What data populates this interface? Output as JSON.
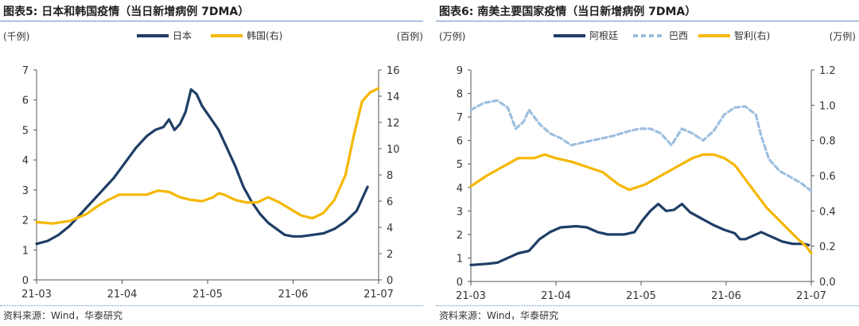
{
  "charts": [
    {
      "title": "图表5: 日本和韩国疫情（当日新增病例 7DMA）",
      "source": "资料来源：Wind，华泰研究",
      "chart_data": {
        "type": "line",
        "x_ticks": [
          "21-03",
          "21-04",
          "21-05",
          "21-06",
          "21-07"
        ],
        "y_left_label": "(千例)",
        "y_right_label": "(百例)",
        "y_left_range": [
          0,
          7
        ],
        "y_left_ticks": [
          0,
          1,
          2,
          3,
          4,
          5,
          6,
          7
        ],
        "y_right_range": [
          0,
          16
        ],
        "y_right_ticks": [
          0,
          2,
          4,
          6,
          8,
          10,
          12,
          14,
          16
        ],
        "legend_position": "top",
        "grid": false,
        "series": [
          {
            "name": "日本",
            "axis": "left",
            "color": "#1f3e66",
            "dash": false,
            "points": [
              [
                0,
                1.2
              ],
              [
                4,
                1.3
              ],
              [
                8,
                1.5
              ],
              [
                12,
                1.8
              ],
              [
                16,
                2.2
              ],
              [
                20,
                2.6
              ],
              [
                24,
                3.0
              ],
              [
                28,
                3.4
              ],
              [
                32,
                3.9
              ],
              [
                36,
                4.4
              ],
              [
                40,
                4.8
              ],
              [
                43,
                5.0
              ],
              [
                46,
                5.1
              ],
              [
                48,
                5.35
              ],
              [
                50,
                5.0
              ],
              [
                52,
                5.2
              ],
              [
                54,
                5.6
              ],
              [
                56,
                6.35
              ],
              [
                58,
                6.2
              ],
              [
                60,
                5.8
              ],
              [
                63,
                5.4
              ],
              [
                66,
                5.0
              ],
              [
                69,
                4.4
              ],
              [
                72,
                3.8
              ],
              [
                75,
                3.1
              ],
              [
                78,
                2.6
              ],
              [
                81,
                2.2
              ],
              [
                84,
                1.9
              ],
              [
                87,
                1.7
              ],
              [
                90,
                1.5
              ],
              [
                93,
                1.45
              ],
              [
                96,
                1.45
              ],
              [
                100,
                1.5
              ],
              [
                104,
                1.55
              ],
              [
                108,
                1.7
              ],
              [
                112,
                1.95
              ],
              [
                116,
                2.3
              ],
              [
                120,
                3.1
              ]
            ]
          },
          {
            "name": "韩国(右)",
            "axis": "right",
            "color": "#f5b700",
            "dash": false,
            "points": [
              [
                0,
                4.4
              ],
              [
                6,
                4.3
              ],
              [
                12,
                4.5
              ],
              [
                18,
                5.0
              ],
              [
                22,
                5.6
              ],
              [
                26,
                6.1
              ],
              [
                30,
                6.5
              ],
              [
                35,
                6.5
              ],
              [
                40,
                6.5
              ],
              [
                44,
                6.8
              ],
              [
                48,
                6.7
              ],
              [
                52,
                6.3
              ],
              [
                56,
                6.1
              ],
              [
                60,
                6.0
              ],
              [
                64,
                6.3
              ],
              [
                66,
                6.6
              ],
              [
                68,
                6.5
              ],
              [
                72,
                6.1
              ],
              [
                76,
                5.9
              ],
              [
                80,
                5.9
              ],
              [
                84,
                6.3
              ],
              [
                88,
                5.9
              ],
              [
                92,
                5.4
              ],
              [
                96,
                4.9
              ],
              [
                100,
                4.7
              ],
              [
                104,
                5.1
              ],
              [
                108,
                6.1
              ],
              [
                112,
                8.0
              ],
              [
                115,
                11.0
              ],
              [
                118,
                13.6
              ],
              [
                121,
                14.3
              ],
              [
                124,
                14.6
              ]
            ]
          }
        ]
      }
    },
    {
      "title": "图表6: 南美主要国家疫情（当日新增病例 7DMA）",
      "source": "资料来源：Wind，华泰研究",
      "chart_data": {
        "type": "line",
        "x_ticks": [
          "21-03",
          "21-04",
          "21-05",
          "21-06",
          "21-07"
        ],
        "y_left_label": "(万例)",
        "y_right_label": "(万例)",
        "y_left_range": [
          0,
          9
        ],
        "y_left_ticks": [
          0,
          1,
          2,
          3,
          4,
          5,
          6,
          7,
          8,
          9
        ],
        "y_right_range": [
          0,
          1.2
        ],
        "y_right_ticks": [
          0.0,
          0.2,
          0.4,
          0.6,
          0.8,
          1.0,
          1.2
        ],
        "legend_position": "top",
        "grid": false,
        "series": [
          {
            "name": "阿根廷",
            "axis": "left",
            "color": "#1f3e66",
            "dash": false,
            "points": [
              [
                0,
                0.7
              ],
              [
                6,
                0.75
              ],
              [
                10,
                0.8
              ],
              [
                14,
                1.0
              ],
              [
                18,
                1.2
              ],
              [
                22,
                1.3
              ],
              [
                26,
                1.8
              ],
              [
                30,
                2.1
              ],
              [
                34,
                2.3
              ],
              [
                40,
                2.35
              ],
              [
                44,
                2.3
              ],
              [
                48,
                2.1
              ],
              [
                52,
                2.0
              ],
              [
                58,
                2.0
              ],
              [
                62,
                2.1
              ],
              [
                65,
                2.6
              ],
              [
                68,
                3.0
              ],
              [
                71,
                3.3
              ],
              [
                74,
                3.0
              ],
              [
                77,
                3.05
              ],
              [
                80,
                3.3
              ],
              [
                83,
                2.95
              ],
              [
                87,
                2.7
              ],
              [
                92,
                2.4
              ],
              [
                96,
                2.2
              ],
              [
                100,
                2.05
              ],
              [
                102,
                1.8
              ],
              [
                104,
                1.8
              ],
              [
                108,
                2.0
              ],
              [
                110,
                2.1
              ],
              [
                114,
                1.9
              ],
              [
                118,
                1.7
              ],
              [
                122,
                1.6
              ],
              [
                126,
                1.6
              ],
              [
                128,
                1.55
              ]
            ]
          },
          {
            "name": "巴西",
            "axis": "left",
            "color": "#9dbfdf",
            "dash": true,
            "points": [
              [
                0,
                7.3
              ],
              [
                5,
                7.6
              ],
              [
                10,
                7.7
              ],
              [
                14,
                7.4
              ],
              [
                17,
                6.5
              ],
              [
                20,
                6.8
              ],
              [
                22,
                7.3
              ],
              [
                26,
                6.7
              ],
              [
                30,
                6.3
              ],
              [
                34,
                6.1
              ],
              [
                38,
                5.8
              ],
              [
                42,
                5.9
              ],
              [
                48,
                6.05
              ],
              [
                54,
                6.2
              ],
              [
                60,
                6.4
              ],
              [
                64,
                6.5
              ],
              [
                68,
                6.5
              ],
              [
                72,
                6.3
              ],
              [
                76,
                5.8
              ],
              [
                80,
                6.5
              ],
              [
                84,
                6.3
              ],
              [
                88,
                6.0
              ],
              [
                92,
                6.4
              ],
              [
                96,
                7.1
              ],
              [
                100,
                7.4
              ],
              [
                104,
                7.45
              ],
              [
                108,
                7.1
              ],
              [
                110,
                6.2
              ],
              [
                113,
                5.2
              ],
              [
                117,
                4.7
              ],
              [
                121,
                4.45
              ],
              [
                125,
                4.2
              ],
              [
                129,
                3.85
              ]
            ]
          },
          {
            "name": "智利(右)",
            "axis": "right",
            "color": "#f5b700",
            "dash": false,
            "points": [
              [
                0,
                0.54
              ],
              [
                6,
                0.6
              ],
              [
                12,
                0.65
              ],
              [
                18,
                0.7
              ],
              [
                24,
                0.7
              ],
              [
                28,
                0.72
              ],
              [
                32,
                0.7
              ],
              [
                38,
                0.68
              ],
              [
                44,
                0.65
              ],
              [
                50,
                0.62
              ],
              [
                56,
                0.55
              ],
              [
                60,
                0.52
              ],
              [
                66,
                0.55
              ],
              [
                72,
                0.6
              ],
              [
                78,
                0.65
              ],
              [
                84,
                0.7
              ],
              [
                88,
                0.72
              ],
              [
                92,
                0.72
              ],
              [
                96,
                0.7
              ],
              [
                100,
                0.66
              ],
              [
                104,
                0.58
              ],
              [
                108,
                0.5
              ],
              [
                112,
                0.42
              ],
              [
                116,
                0.36
              ],
              [
                120,
                0.3
              ],
              [
                124,
                0.24
              ],
              [
                127,
                0.2
              ],
              [
                129,
                0.16
              ]
            ]
          }
        ]
      }
    }
  ]
}
